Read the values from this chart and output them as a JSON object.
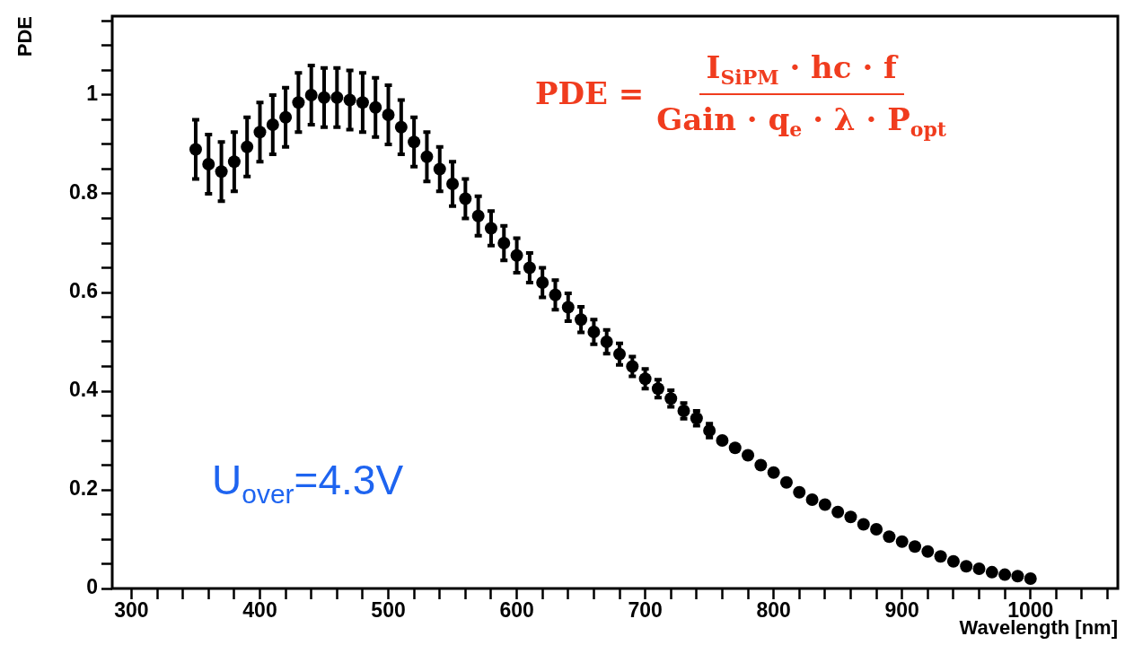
{
  "chart_data": {
    "type": "scatter",
    "xlabel": "Wavelength [nm]",
    "ylabel": "PDE",
    "x": [
      350,
      360,
      370,
      380,
      390,
      400,
      410,
      420,
      430,
      440,
      450,
      460,
      470,
      480,
      490,
      500,
      510,
      520,
      530,
      540,
      550,
      560,
      570,
      580,
      590,
      600,
      610,
      620,
      630,
      640,
      650,
      660,
      670,
      680,
      690,
      700,
      710,
      720,
      730,
      740,
      750,
      760,
      770,
      780,
      790,
      800,
      810,
      820,
      830,
      840,
      850,
      860,
      870,
      880,
      890,
      900,
      910,
      920,
      930,
      940,
      950,
      960,
      970,
      980,
      990,
      1000
    ],
    "series": [
      {
        "color": "#000000",
        "values": [
          0.89,
          0.86,
          0.845,
          0.865,
          0.895,
          0.925,
          0.94,
          0.955,
          0.985,
          1.0,
          0.995,
          0.995,
          0.99,
          0.985,
          0.975,
          0.96,
          0.935,
          0.905,
          0.875,
          0.85,
          0.82,
          0.79,
          0.755,
          0.73,
          0.7,
          0.675,
          0.65,
          0.62,
          0.595,
          0.57,
          0.545,
          0.52,
          0.5,
          0.475,
          0.45,
          0.425,
          0.405,
          0.385,
          0.36,
          0.345,
          0.32,
          0.3,
          0.285,
          0.27,
          0.25,
          0.235,
          0.215,
          0.195,
          0.18,
          0.17,
          0.155,
          0.145,
          0.13,
          0.12,
          0.105,
          0.095,
          0.085,
          0.075,
          0.065,
          0.055,
          0.045,
          0.04,
          0.033,
          0.028,
          0.025,
          0.02
        ],
        "errors": [
          0.06,
          0.06,
          0.06,
          0.06,
          0.06,
          0.06,
          0.06,
          0.06,
          0.06,
          0.06,
          0.06,
          0.06,
          0.06,
          0.06,
          0.06,
          0.06,
          0.055,
          0.05,
          0.05,
          0.045,
          0.045,
          0.04,
          0.04,
          0.035,
          0.035,
          0.035,
          0.03,
          0.03,
          0.03,
          0.028,
          0.026,
          0.025,
          0.024,
          0.022,
          0.02,
          0.02,
          0.018,
          0.017,
          0.016,
          0.015,
          0.014,
          null,
          null,
          null,
          null,
          null,
          null,
          null,
          null,
          null,
          null,
          null,
          null,
          null,
          null,
          null,
          null,
          null,
          null,
          null,
          null,
          null,
          null,
          null,
          null,
          null
        ]
      }
    ],
    "marker": "circle",
    "grid": false,
    "legend": false,
    "xlim": [
      285,
      1068
    ],
    "xticks": [
      300,
      {
        "value": 320,
        "label": null
      },
      {
        "value": 340,
        "label": null
      },
      {
        "value": 360,
        "label": null
      },
      {
        "value": 380,
        "label": null
      },
      400,
      {
        "value": 420,
        "label": null
      },
      {
        "value": 440,
        "label": null
      },
      {
        "value": 460,
        "label": null
      },
      {
        "value": 480,
        "label": null
      },
      500,
      {
        "value": 520,
        "label": null
      },
      {
        "value": 540,
        "label": null
      },
      {
        "value": 560,
        "label": null
      },
      {
        "value": 580,
        "label": null
      },
      600,
      {
        "value": 620,
        "label": null
      },
      {
        "value": 640,
        "label": null
      },
      {
        "value": 660,
        "label": null
      },
      {
        "value": 680,
        "label": null
      },
      700,
      {
        "value": 720,
        "label": null
      },
      {
        "value": 740,
        "label": null
      },
      {
        "value": 760,
        "label": null
      },
      {
        "value": 780,
        "label": null
      },
      800,
      {
        "value": 820,
        "label": null
      },
      {
        "value": 840,
        "label": null
      },
      {
        "value": 860,
        "label": null
      },
      {
        "value": 880,
        "label": null
      },
      900,
      {
        "value": 920,
        "label": null
      },
      {
        "value": 940,
        "label": null
      },
      {
        "value": 960,
        "label": null
      },
      {
        "value": 980,
        "label": null
      },
      1000,
      {
        "value": 1020,
        "label": null
      },
      {
        "value": 1040,
        "label": null
      },
      {
        "value": 1060,
        "label": null
      }
    ],
    "ylim": [
      0,
      1.16
    ],
    "yticks": [
      0,
      {
        "value": 0.05,
        "label": null
      },
      {
        "value": 0.1,
        "label": null
      },
      {
        "value": 0.15,
        "label": null
      },
      0.2,
      {
        "value": 0.25,
        "label": null
      },
      {
        "value": 0.3,
        "label": null
      },
      {
        "value": 0.35,
        "label": null
      },
      0.4,
      {
        "value": 0.45,
        "label": null
      },
      {
        "value": 0.5,
        "label": null
      },
      {
        "value": 0.55,
        "label": null
      },
      0.6,
      {
        "value": 0.65,
        "label": null
      },
      {
        "value": 0.7,
        "label": null
      },
      {
        "value": 0.75,
        "label": null
      },
      0.8,
      {
        "value": 0.85,
        "label": null
      },
      {
        "value": 0.9,
        "label": null
      },
      {
        "value": 0.95,
        "label": null
      },
      1,
      {
        "value": 1.05,
        "label": null
      },
      {
        "value": 1.1,
        "label": null
      },
      {
        "value": 1.15,
        "label": null
      }
    ],
    "annotations": [
      "PDE =",
      "I$_{SiPM}$ · hc · f",
      "Gain · q$_{e}$ · λ · P$_{opt}$",
      "U$_{over}$=4.3V"
    ]
  }
}
